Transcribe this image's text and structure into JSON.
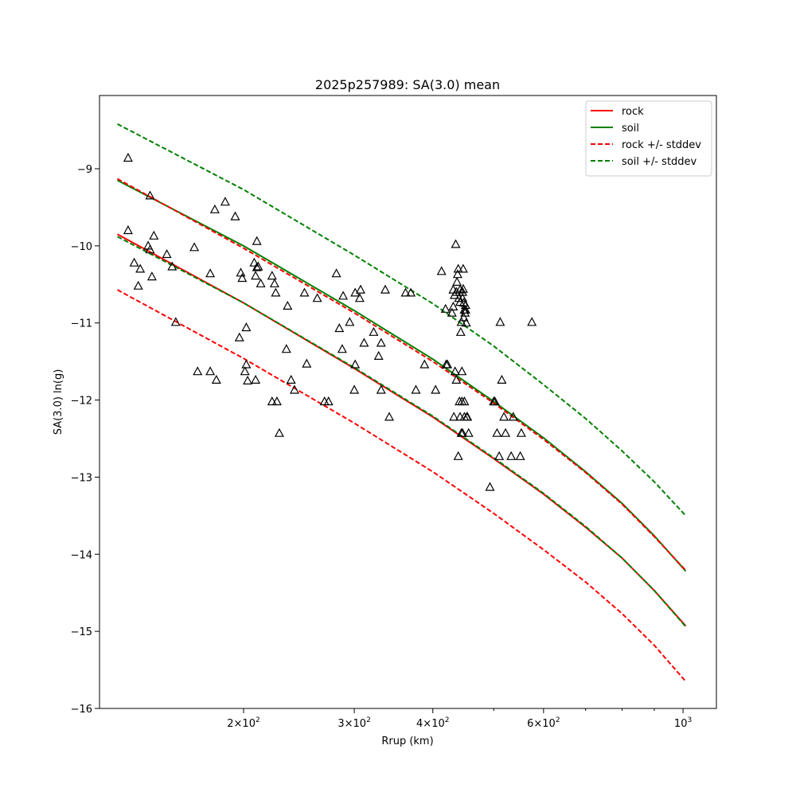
{
  "chart_data": {
    "type": "scatter",
    "title": "2025p257989: SA(3.0) mean",
    "xlabel": "Rrup (km)",
    "ylabel": "SA(3.0) ln(g)",
    "xscale": "log",
    "xlim": [
      118,
      1130
    ],
    "ylim": [
      -16.0,
      -8.05
    ],
    "grid": false,
    "legend_position": "top-right",
    "x_ticks": [
      {
        "value": 200,
        "base": "2",
        "exp": "2"
      },
      {
        "value": 300,
        "base": "3",
        "exp": "2"
      },
      {
        "value": 400,
        "base": "4",
        "exp": "2"
      },
      {
        "value": 600,
        "base": "6",
        "exp": "2"
      },
      {
        "value": 1000,
        "base": "",
        "exp": "3"
      }
    ],
    "x_minor_ticks": [
      500,
      700,
      800,
      900
    ],
    "y_ticks": [
      {
        "value": -9,
        "label": "−9"
      },
      {
        "value": -10,
        "label": "−10"
      },
      {
        "value": -11,
        "label": "−11"
      },
      {
        "value": -12,
        "label": "−12"
      },
      {
        "value": -13,
        "label": "−13"
      },
      {
        "value": -14,
        "label": "−14"
      },
      {
        "value": -15,
        "label": "−15"
      },
      {
        "value": -16,
        "label": "−16"
      }
    ],
    "series": [
      {
        "name": "rock",
        "color": "#ff0000",
        "style": "solid",
        "x": [
          126,
          200,
          300,
          400,
          500,
          600,
          700,
          800,
          900,
          1010
        ],
        "y": [
          -9.85,
          -10.74,
          -11.59,
          -12.22,
          -12.76,
          -13.22,
          -13.65,
          -14.05,
          -14.47,
          -14.93
        ]
      },
      {
        "name": "soil",
        "color": "#008000",
        "style": "solid",
        "x": [
          126,
          200,
          300,
          400,
          500,
          600,
          700,
          800,
          900,
          1010
        ],
        "y": [
          -9.15,
          -10.0,
          -10.84,
          -11.47,
          -12.02,
          -12.49,
          -12.93,
          -13.34,
          -13.76,
          -14.22
        ]
      },
      {
        "name": "rock +/- stddev",
        "color": "#ff0000",
        "style": "dashed",
        "x": [
          126,
          200,
          300,
          400,
          500,
          600,
          700,
          800,
          900,
          1010
        ],
        "y": [
          -9.13,
          -10.03,
          -10.87,
          -11.5,
          -12.04,
          -12.51,
          -12.94,
          -13.35,
          -13.77,
          -14.21
        ]
      },
      {
        "name": "",
        "legend": false,
        "color": "#ff0000",
        "style": "dashed",
        "x": [
          126,
          200,
          300,
          400,
          500,
          600,
          700,
          800,
          900,
          1010
        ],
        "y": [
          -10.57,
          -11.46,
          -12.3,
          -12.93,
          -13.47,
          -13.94,
          -14.36,
          -14.77,
          -15.18,
          -15.65
        ]
      },
      {
        "name": "soil +/- stddev",
        "color": "#008000",
        "style": "dashed",
        "x": [
          126,
          200,
          300,
          400,
          500,
          600,
          700,
          800,
          900,
          1010
        ],
        "y": [
          -8.42,
          -9.27,
          -10.12,
          -10.75,
          -11.3,
          -11.8,
          -12.24,
          -12.66,
          -13.06,
          -13.5
        ]
      },
      {
        "name": "",
        "legend": false,
        "color": "#008000",
        "style": "dashed",
        "x": [
          126,
          200,
          300,
          400,
          500,
          600,
          700,
          800,
          900,
          1010
        ],
        "y": [
          -9.88,
          -10.74,
          -11.58,
          -12.21,
          -12.75,
          -13.21,
          -13.64,
          -14.05,
          -14.47,
          -14.94
        ]
      }
    ],
    "points": [
      [
        131,
        -8.86
      ],
      [
        131,
        -9.8
      ],
      [
        136,
        -10.52
      ],
      [
        134,
        -10.22
      ],
      [
        137,
        -10.3
      ],
      [
        141,
        -10.0
      ],
      [
        142,
        -9.35
      ],
      [
        142,
        -10.05
      ],
      [
        143,
        -10.4
      ],
      [
        144,
        -9.87
      ],
      [
        151,
        -10.11
      ],
      [
        154,
        -10.27
      ],
      [
        156,
        -10.99
      ],
      [
        167,
        -10.02
      ],
      [
        169,
        -11.63
      ],
      [
        177,
        -10.36
      ],
      [
        177,
        -11.63
      ],
      [
        181,
        -11.74
      ],
      [
        180,
        -9.53
      ],
      [
        187,
        -9.43
      ],
      [
        194,
        -9.62
      ],
      [
        197,
        -11.19
      ],
      [
        198,
        -10.35
      ],
      [
        199,
        -10.42
      ],
      [
        202,
        -11.06
      ],
      [
        202,
        -11.54
      ],
      [
        203,
        -11.75
      ],
      [
        201,
        -11.63
      ],
      [
        208,
        -10.22
      ],
      [
        209,
        -10.39
      ],
      [
        209,
        -11.74
      ],
      [
        210,
        -10.28
      ],
      [
        211,
        -10.27
      ],
      [
        210,
        -9.94
      ],
      [
        213,
        -10.49
      ],
      [
        222,
        -10.39
      ],
      [
        224,
        -10.49
      ],
      [
        225,
        -10.61
      ],
      [
        222,
        -12.02
      ],
      [
        226,
        -12.02
      ],
      [
        228,
        -12.43
      ],
      [
        235,
        -10.78
      ],
      [
        234,
        -11.34
      ],
      [
        238,
        -11.74
      ],
      [
        241,
        -11.87
      ],
      [
        250,
        -10.61
      ],
      [
        252,
        -11.53
      ],
      [
        262,
        -10.68
      ],
      [
        269,
        -12.02
      ],
      [
        273,
        -12.02
      ],
      [
        281,
        -10.36
      ],
      [
        284,
        -11.07
      ],
      [
        287,
        -11.34
      ],
      [
        288,
        -10.65
      ],
      [
        295,
        -10.99
      ],
      [
        300,
        -11.87
      ],
      [
        301,
        -11.54
      ],
      [
        301,
        -10.61
      ],
      [
        306,
        -10.68
      ],
      [
        307,
        -10.57
      ],
      [
        311,
        -11.26
      ],
      [
        322,
        -11.12
      ],
      [
        328,
        -11.43
      ],
      [
        331,
        -11.26
      ],
      [
        331,
        -11.87
      ],
      [
        336,
        -10.57
      ],
      [
        341,
        -12.22
      ],
      [
        362,
        -10.61
      ],
      [
        369,
        -10.61
      ],
      [
        376,
        -11.87
      ],
      [
        388,
        -11.54
      ],
      [
        404,
        -11.87
      ],
      [
        413,
        -10.33
      ],
      [
        419,
        -10.82
      ],
      [
        420,
        -11.54
      ],
      [
        422,
        -11.54
      ],
      [
        429,
        -10.87
      ],
      [
        431,
        -10.57
      ],
      [
        431,
        -10.79
      ],
      [
        432,
        -12.22
      ],
      [
        433,
        -10.64
      ],
      [
        434,
        -11.63
      ],
      [
        435,
        -9.98
      ],
      [
        436,
        -10.6
      ],
      [
        436,
        -11.74
      ],
      [
        437,
        -10.47
      ],
      [
        438,
        -10.37
      ],
      [
        439,
        -10.3
      ],
      [
        439,
        -12.73
      ],
      [
        440,
        -10.68
      ],
      [
        441,
        -12.02
      ],
      [
        442,
        -10.57
      ],
      [
        442,
        -10.73
      ],
      [
        442,
        -12.22
      ],
      [
        443,
        -11.12
      ],
      [
        444,
        -12.43
      ],
      [
        444,
        -10.99
      ],
      [
        445,
        -11.63
      ],
      [
        445,
        -12.02
      ],
      [
        446,
        -10.68
      ],
      [
        446,
        -10.6
      ],
      [
        446,
        -12.43
      ],
      [
        447,
        -10.3
      ],
      [
        447,
        -10.56
      ],
      [
        448,
        -10.74
      ],
      [
        448,
        -10.93
      ],
      [
        449,
        -12.02
      ],
      [
        449,
        -12.22
      ],
      [
        449,
        -10.83
      ],
      [
        450,
        -10.87
      ],
      [
        451,
        -10.77
      ],
      [
        451,
        -10.83
      ],
      [
        452,
        -11.0
      ],
      [
        453,
        -12.22
      ],
      [
        454,
        -12.22
      ],
      [
        456,
        -12.43
      ],
      [
        493,
        -13.13
      ],
      [
        500,
        -12.02
      ],
      [
        502,
        -12.02
      ],
      [
        506,
        -12.43
      ],
      [
        510,
        -12.73
      ],
      [
        512,
        -10.99
      ],
      [
        515,
        -11.74
      ],
      [
        519,
        -12.22
      ],
      [
        522,
        -12.43
      ],
      [
        533,
        -12.73
      ],
      [
        537,
        -12.22
      ],
      [
        551,
        -12.73
      ],
      [
        553,
        -12.43
      ],
      [
        575,
        -10.99
      ]
    ]
  }
}
